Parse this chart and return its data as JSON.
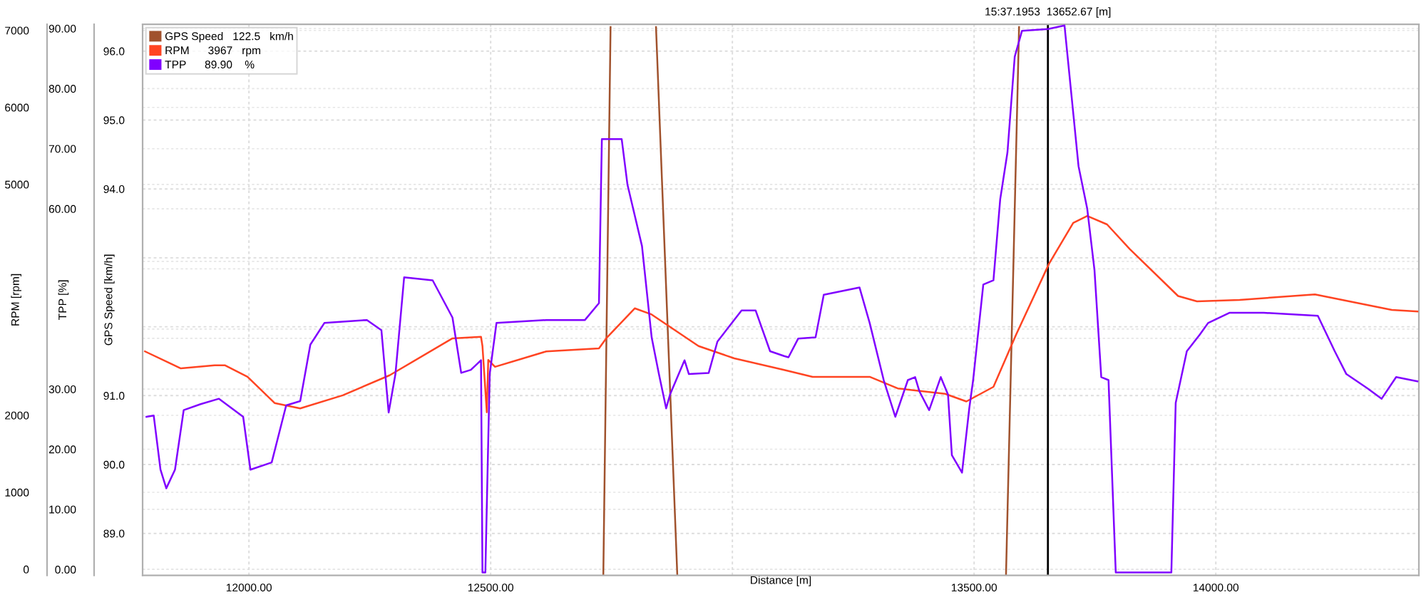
{
  "chart_data": {
    "type": "line",
    "xlabel": "Distance [m]",
    "ylabel": "GPS Speed [km/h]",
    "y3label": "TPP [%]",
    "y2label": "RPM [rpm]",
    "xlim": [
      11780,
      14420
    ],
    "xticks": [
      {
        "value": 12000,
        "label": "12000.00"
      },
      {
        "value": 12500,
        "label": "12500.00"
      },
      {
        "value": 13000,
        "label": null
      },
      {
        "value": 13500,
        "label": "13500.00"
      },
      {
        "value": 14000,
        "label": "14000.00"
      }
    ],
    "ylim": [
      88.39,
      96.39
    ],
    "yticks": [
      {
        "value": 89,
        "label": "89.0"
      },
      {
        "value": 90,
        "label": "90.0"
      },
      {
        "value": 91,
        "label": "91.0"
      },
      {
        "value": 92,
        "label": null
      },
      {
        "value": 93,
        "label": null
      },
      {
        "value": 94,
        "label": "94.0"
      },
      {
        "value": 95,
        "label": "95.0"
      },
      {
        "value": 96,
        "label": "96.0"
      }
    ],
    "y3lim": [
      -1.0,
      90.7
    ],
    "y3ticks": [
      {
        "value": 0,
        "label": "0.00"
      },
      {
        "value": 10,
        "label": "10.00"
      },
      {
        "value": 20,
        "label": "20.00"
      },
      {
        "value": 30,
        "label": "30.00"
      },
      {
        "value": 40,
        "label": null
      },
      {
        "value": 50,
        "label": null
      },
      {
        "value": 60,
        "label": "60.00"
      },
      {
        "value": 70,
        "label": "70.00"
      },
      {
        "value": 80,
        "label": "80.00"
      },
      {
        "value": 90,
        "label": "90.00"
      }
    ],
    "y2lim": [
      -80,
      7080
    ],
    "y2ticks": [
      {
        "value": 0,
        "label": "0"
      },
      {
        "value": 1000,
        "label": "1000"
      },
      {
        "value": 2000,
        "label": "2000"
      },
      {
        "value": 3000,
        "label": null
      },
      {
        "value": 4000,
        "label": null
      },
      {
        "value": 5000,
        "label": "5000"
      },
      {
        "value": 6000,
        "label": "6000"
      },
      {
        "value": 7000,
        "label": "7000"
      }
    ],
    "grid": true,
    "legend": "top left",
    "marker": "none",
    "line_style": "solid",
    "ref_lines": [
      {
        "axis": "x",
        "value": 13652.67,
        "label": "15:37.1953  13652.67 [m]",
        "color": "#000000"
      }
    ],
    "series": [
      {
        "name": "GPS Speed   122.5   km/h",
        "color": "#a0522d",
        "x": [
          12733,
          12748,
          12790,
          12842,
          12886,
          13300,
          13566,
          13593
        ],
        "values": [
          88.4,
          96.35,
          null,
          96.35,
          88.4,
          null,
          88.4,
          96.35
        ]
      },
      {
        "name": "RPM      3967   rpm",
        "color": "#ff4422",
        "axis": "y2",
        "x": [
          11785,
          11859,
          11929,
          11950,
          11997,
          12053,
          12106,
          12194,
          12291,
          12421,
          12480,
          12483,
          12492,
          12495,
          12509,
          12615,
          12724,
          12739,
          12798,
          12833,
          12930,
          13004,
          13107,
          13166,
          13284,
          13342,
          13440,
          13484,
          13540,
          13587,
          13655,
          13705,
          13734,
          13775,
          13822,
          13922,
          13961,
          14049,
          14205,
          14364,
          14417
        ],
        "values": [
          2830,
          2610,
          2650,
          2650,
          2500,
          2160,
          2090,
          2260,
          2520,
          3000,
          3020,
          2900,
          2040,
          2720,
          2630,
          2830,
          2870,
          3000,
          3390,
          3310,
          2900,
          2740,
          2590,
          2500,
          2500,
          2350,
          2280,
          2180,
          2370,
          3050,
          3970,
          4500,
          4590,
          4480,
          4160,
          3550,
          3480,
          3500,
          3570,
          3370,
          3350
        ]
      },
      {
        "name": "TPP      89.90    %",
        "color": "#8000ff",
        "axis": "y3",
        "x": [
          11788,
          11803,
          11817,
          11829,
          11847,
          11865,
          11900,
          11938,
          11988,
          12003,
          12047,
          12077,
          12106,
          12127,
          12156,
          12244,
          12274,
          12289,
          12303,
          12321,
          12380,
          12421,
          12439,
          12459,
          12480,
          12483,
          12489,
          12498,
          12512,
          12615,
          12695,
          12724,
          12730,
          12771,
          12783,
          12813,
          12833,
          12848,
          12863,
          12871,
          12901,
          12910,
          12951,
          12969,
          13019,
          13048,
          13078,
          13107,
          13116,
          13136,
          13172,
          13189,
          13263,
          13284,
          13313,
          13337,
          13363,
          13378,
          13387,
          13407,
          13431,
          13446,
          13454,
          13475,
          13490,
          13498,
          13519,
          13540,
          13554,
          13569,
          13584,
          13599,
          13653,
          13687,
          13716,
          13734,
          13749,
          13763,
          13778,
          13793,
          13908,
          13917,
          13940,
          13967,
          13984,
          14028,
          14099,
          14211,
          14246,
          14270,
          14314,
          14343,
          14373,
          14417
        ],
        "values": [
          25.4,
          25.6,
          16.6,
          13.5,
          16.6,
          26.5,
          27.5,
          28.4,
          25.4,
          16.6,
          17.8,
          27.3,
          28.0,
          37.4,
          41.0,
          41.5,
          39.8,
          26.1,
          32.5,
          48.6,
          48.1,
          41.9,
          32.7,
          33.2,
          34.8,
          -0.5,
          -0.5,
          32.5,
          41.0,
          41.5,
          41.5,
          44.3,
          71.6,
          71.6,
          64.0,
          53.8,
          38.6,
          32.5,
          26.8,
          29.1,
          34.8,
          32.5,
          32.7,
          37.9,
          43.1,
          43.1,
          36.3,
          35.5,
          35.3,
          38.4,
          38.6,
          45.7,
          46.9,
          41.0,
          31.5,
          25.4,
          31.5,
          32.0,
          29.6,
          26.5,
          32.0,
          29.1,
          19.0,
          16.1,
          26.8,
          31.5,
          47.4,
          48.1,
          61.6,
          69.4,
          85.3,
          89.6,
          89.9,
          90.5,
          67.1,
          60.0,
          49.8,
          32.0,
          31.5,
          -0.5,
          -0.5,
          27.7,
          36.3,
          39.1,
          41.0,
          42.7,
          42.7,
          42.2,
          36.3,
          32.5,
          30.1,
          28.4,
          32.0,
          31.3
        ]
      }
    ]
  }
}
